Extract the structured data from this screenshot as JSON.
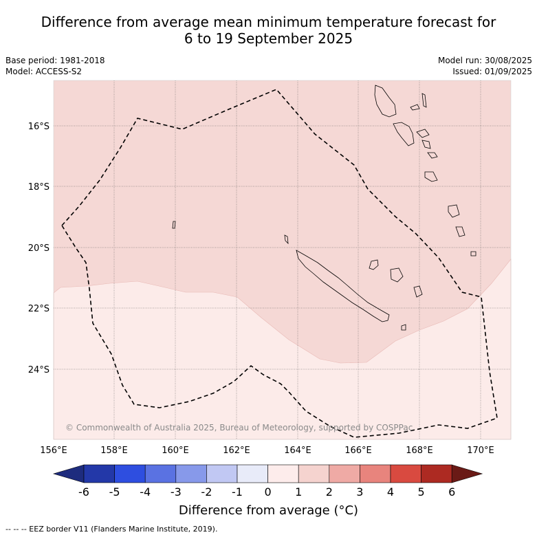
{
  "header": {
    "title_line1": "Difference from average mean minimum temperature forecast for",
    "title_line2": "6 to 19 September 2025",
    "base_period": "Base period: 1981-2018",
    "model": "Model: ACCESS-S2",
    "model_run": "Model run: 30/08/2025",
    "issued": "Issued: 01/09/2025"
  },
  "map": {
    "lat_labels": [
      "16°S",
      "18°S",
      "20°S",
      "22°S",
      "24°S"
    ],
    "lon_labels": [
      "156°E",
      "158°E",
      "160°E",
      "162°E",
      "164°E",
      "166°E",
      "168°E",
      "170°E"
    ],
    "watermark": "© Commonwealth of Australia 2025, Bureau of Meteorology, supported by COSPPac",
    "fill_colors": {
      "band_1_2": "#f5d8d5",
      "band_0_1": "#fcebe9"
    }
  },
  "colorbar": {
    "tick_labels": [
      "-6",
      "-5",
      "-4",
      "-3",
      "-2",
      "-1",
      "0",
      "1",
      "2",
      "3",
      "4",
      "5",
      "6"
    ],
    "colors": [
      "#1e2c7e",
      "#2338a8",
      "#2e4ee0",
      "#5a72e2",
      "#8799ea",
      "#c1c8f3",
      "#e8ebf9",
      "#fdeceb",
      "#f5d3cf",
      "#efaaa5",
      "#e8847d",
      "#d94a40",
      "#ad2a22",
      "#6a1a16"
    ],
    "title": "Difference from average (°C)"
  },
  "footer": {
    "eez_note": "--  --  -- EEZ border V11 (Flanders Marine Institute, 2019)."
  }
}
